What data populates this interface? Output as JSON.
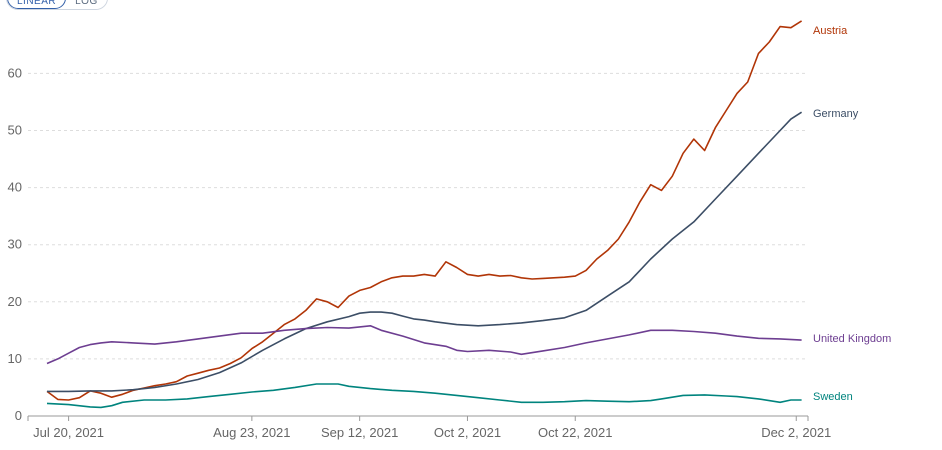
{
  "controls": {
    "linear_label": "LINEAR",
    "log_label": "LOG"
  },
  "chart_data": {
    "type": "line",
    "title": "",
    "xlabel": "",
    "ylabel": "",
    "ylim": [
      0,
      69
    ],
    "y_ticks": [
      0,
      10,
      20,
      30,
      40,
      50,
      60
    ],
    "x_range_days": [
      0,
      139
    ],
    "x_ticks": [
      {
        "day": 0,
        "label": "Jul 20, 2021"
      },
      {
        "day": 34,
        "label": "Aug 23, 2021"
      },
      {
        "day": 54,
        "label": "Sep 12, 2021"
      },
      {
        "day": 74,
        "label": "Oct 2, 2021"
      },
      {
        "day": 94,
        "label": "Oct 22, 2021"
      },
      {
        "day": 135,
        "label": "Dec 2, 2021"
      }
    ],
    "grid": true,
    "series": [
      {
        "name": "Austria",
        "color": "#b13507",
        "points": [
          [
            -4,
            4.3
          ],
          [
            -2,
            2.9
          ],
          [
            0,
            2.8
          ],
          [
            2,
            3.2
          ],
          [
            4,
            4.4
          ],
          [
            6,
            4.0
          ],
          [
            8,
            3.3
          ],
          [
            10,
            3.8
          ],
          [
            12,
            4.5
          ],
          [
            14,
            4.9
          ],
          [
            16,
            5.3
          ],
          [
            18,
            5.6
          ],
          [
            20,
            6.0
          ],
          [
            22,
            7.0
          ],
          [
            24,
            7.5
          ],
          [
            26,
            8.0
          ],
          [
            28,
            8.4
          ],
          [
            30,
            9.2
          ],
          [
            32,
            10.2
          ],
          [
            34,
            11.8
          ],
          [
            36,
            13.0
          ],
          [
            38,
            14.5
          ],
          [
            40,
            16.0
          ],
          [
            42,
            17.0
          ],
          [
            44,
            18.5
          ],
          [
            46,
            20.5
          ],
          [
            48,
            20.0
          ],
          [
            50,
            19.0
          ],
          [
            52,
            21.0
          ],
          [
            54,
            22.0
          ],
          [
            56,
            22.5
          ],
          [
            58,
            23.5
          ],
          [
            60,
            24.2
          ],
          [
            62,
            24.5
          ],
          [
            64,
            24.5
          ],
          [
            66,
            24.8
          ],
          [
            68,
            24.5
          ],
          [
            70,
            27.0
          ],
          [
            72,
            26.0
          ],
          [
            74,
            24.8
          ],
          [
            76,
            24.5
          ],
          [
            78,
            24.8
          ],
          [
            80,
            24.5
          ],
          [
            82,
            24.6
          ],
          [
            84,
            24.2
          ],
          [
            86,
            24.0
          ],
          [
            88,
            24.1
          ],
          [
            90,
            24.2
          ],
          [
            92,
            24.3
          ],
          [
            94,
            24.5
          ],
          [
            96,
            25.5
          ],
          [
            98,
            27.5
          ],
          [
            100,
            29.0
          ],
          [
            102,
            31.0
          ],
          [
            104,
            34.0
          ],
          [
            106,
            37.5
          ],
          [
            108,
            40.5
          ],
          [
            110,
            39.5
          ],
          [
            112,
            42.0
          ],
          [
            114,
            46.0
          ],
          [
            116,
            48.5
          ],
          [
            118,
            46.5
          ],
          [
            120,
            50.5
          ],
          [
            122,
            53.5
          ],
          [
            124,
            56.5
          ],
          [
            126,
            58.5
          ],
          [
            128,
            63.5
          ],
          [
            130,
            65.5
          ],
          [
            132,
            68.2
          ],
          [
            134,
            68.0
          ],
          [
            136,
            69.2
          ]
        ]
      },
      {
        "name": "Germany",
        "color": "#3c4e66",
        "points": [
          [
            -4,
            4.3
          ],
          [
            0,
            4.3
          ],
          [
            4,
            4.4
          ],
          [
            8,
            4.4
          ],
          [
            12,
            4.6
          ],
          [
            16,
            5.0
          ],
          [
            20,
            5.6
          ],
          [
            24,
            6.4
          ],
          [
            28,
            7.6
          ],
          [
            32,
            9.3
          ],
          [
            36,
            11.5
          ],
          [
            40,
            13.5
          ],
          [
            44,
            15.3
          ],
          [
            48,
            16.5
          ],
          [
            52,
            17.4
          ],
          [
            54,
            18.0
          ],
          [
            56,
            18.2
          ],
          [
            58,
            18.2
          ],
          [
            60,
            18.0
          ],
          [
            62,
            17.5
          ],
          [
            64,
            17.0
          ],
          [
            66,
            16.8
          ],
          [
            68,
            16.5
          ],
          [
            72,
            16.0
          ],
          [
            76,
            15.8
          ],
          [
            80,
            16.0
          ],
          [
            84,
            16.3
          ],
          [
            88,
            16.7
          ],
          [
            92,
            17.2
          ],
          [
            96,
            18.5
          ],
          [
            100,
            21.0
          ],
          [
            104,
            23.5
          ],
          [
            108,
            27.5
          ],
          [
            112,
            31.0
          ],
          [
            116,
            34.0
          ],
          [
            120,
            38.0
          ],
          [
            124,
            42.0
          ],
          [
            128,
            46.0
          ],
          [
            132,
            50.0
          ],
          [
            134,
            52.0
          ],
          [
            136,
            53.2
          ]
        ]
      },
      {
        "name": "United Kingdom",
        "color": "#6d3e91",
        "points": [
          [
            -4,
            9.2
          ],
          [
            -2,
            10.0
          ],
          [
            0,
            11.0
          ],
          [
            2,
            12.0
          ],
          [
            4,
            12.5
          ],
          [
            6,
            12.8
          ],
          [
            8,
            13.0
          ],
          [
            12,
            12.8
          ],
          [
            16,
            12.6
          ],
          [
            20,
            13.0
          ],
          [
            24,
            13.5
          ],
          [
            28,
            14.0
          ],
          [
            32,
            14.5
          ],
          [
            36,
            14.5
          ],
          [
            40,
            15.0
          ],
          [
            44,
            15.3
          ],
          [
            48,
            15.5
          ],
          [
            52,
            15.4
          ],
          [
            54,
            15.6
          ],
          [
            56,
            15.8
          ],
          [
            58,
            15.0
          ],
          [
            62,
            14.0
          ],
          [
            66,
            12.8
          ],
          [
            70,
            12.2
          ],
          [
            72,
            11.5
          ],
          [
            74,
            11.3
          ],
          [
            78,
            11.5
          ],
          [
            82,
            11.2
          ],
          [
            84,
            10.8
          ],
          [
            88,
            11.4
          ],
          [
            92,
            12.0
          ],
          [
            96,
            12.8
          ],
          [
            100,
            13.5
          ],
          [
            104,
            14.2
          ],
          [
            108,
            15.0
          ],
          [
            112,
            15.0
          ],
          [
            116,
            14.8
          ],
          [
            120,
            14.5
          ],
          [
            124,
            14.0
          ],
          [
            128,
            13.6
          ],
          [
            132,
            13.5
          ],
          [
            136,
            13.3
          ]
        ]
      },
      {
        "name": "Sweden",
        "color": "#00847e",
        "points": [
          [
            -4,
            2.2
          ],
          [
            0,
            2.0
          ],
          [
            4,
            1.6
          ],
          [
            6,
            1.5
          ],
          [
            8,
            1.8
          ],
          [
            10,
            2.4
          ],
          [
            14,
            2.8
          ],
          [
            18,
            2.8
          ],
          [
            22,
            3.0
          ],
          [
            26,
            3.4
          ],
          [
            30,
            3.8
          ],
          [
            34,
            4.2
          ],
          [
            38,
            4.5
          ],
          [
            42,
            5.0
          ],
          [
            46,
            5.6
          ],
          [
            50,
            5.6
          ],
          [
            52,
            5.2
          ],
          [
            56,
            4.8
          ],
          [
            60,
            4.5
          ],
          [
            64,
            4.3
          ],
          [
            68,
            4.0
          ],
          [
            72,
            3.6
          ],
          [
            76,
            3.2
          ],
          [
            80,
            2.8
          ],
          [
            84,
            2.4
          ],
          [
            88,
            2.4
          ],
          [
            92,
            2.5
          ],
          [
            96,
            2.7
          ],
          [
            100,
            2.6
          ],
          [
            104,
            2.5
          ],
          [
            108,
            2.7
          ],
          [
            110,
            3.0
          ],
          [
            114,
            3.6
          ],
          [
            118,
            3.7
          ],
          [
            122,
            3.5
          ],
          [
            124,
            3.4
          ],
          [
            128,
            3.0
          ],
          [
            132,
            2.4
          ],
          [
            134,
            2.8
          ],
          [
            136,
            2.8
          ]
        ]
      }
    ]
  }
}
